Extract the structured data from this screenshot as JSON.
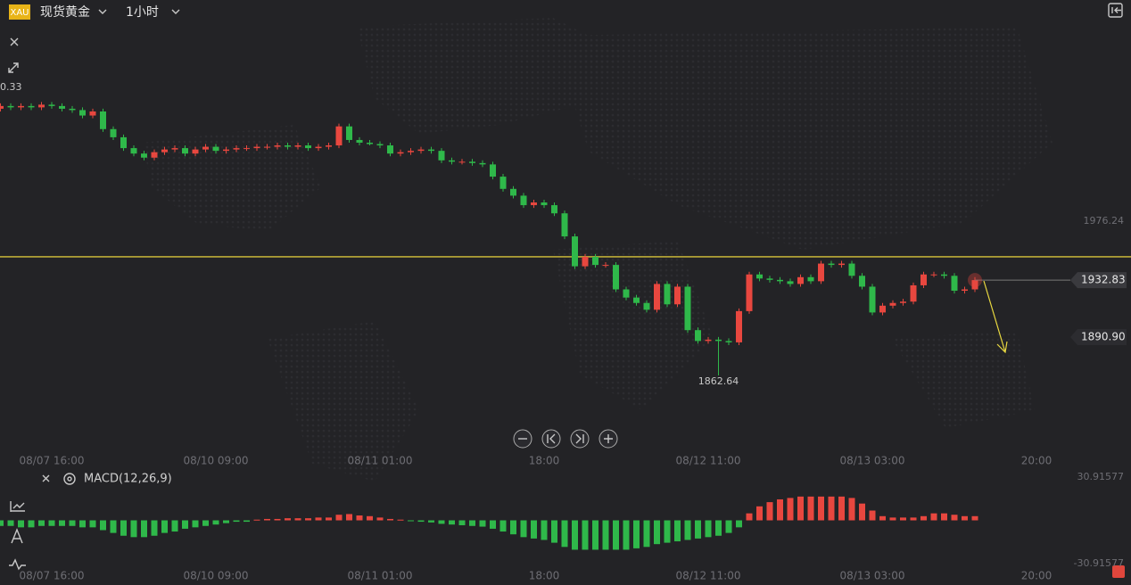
{
  "header": {
    "symbol_badge": "XAU",
    "instrument": "现货黄金",
    "interval": "1小时"
  },
  "chart_data": {
    "type": "candlestick",
    "categories": [
      null,
      null,
      null,
      null,
      null,
      "08/07 16:00",
      null,
      null,
      null,
      null,
      null,
      null,
      null,
      null,
      null,
      null,
      null,
      null,
      null,
      null,
      null,
      "08/10 09:00",
      null,
      null,
      null,
      null,
      null,
      null,
      null,
      null,
      null,
      null,
      null,
      null,
      null,
      null,
      null,
      "08/11 01:00",
      null,
      null,
      null,
      null,
      null,
      null,
      null,
      null,
      null,
      null,
      null,
      null,
      null,
      null,
      null,
      "18:00",
      null,
      null,
      null,
      null,
      null,
      null,
      null,
      null,
      null,
      null,
      null,
      null,
      null,
      null,
      null,
      "08/12 11:00",
      null,
      null,
      null,
      null,
      null,
      null,
      null,
      null,
      null,
      null,
      null,
      null,
      null,
      null,
      null,
      "08/13 03:00",
      null,
      null,
      null,
      null,
      null,
      null,
      null,
      null,
      null,
      null,
      null,
      null,
      null,
      null,
      null,
      "20:00"
    ],
    "open": [
      2059,
      2061,
      2060,
      2061,
      2060,
      2062,
      2061,
      2059,
      2058,
      2054,
      2057,
      2044,
      2038,
      2030,
      2026,
      2023,
      2027,
      2029,
      2030,
      2026,
      2029,
      2031,
      2028,
      2029,
      2030,
      2030,
      2031,
      2031,
      2032,
      2031,
      2032,
      2030,
      2031,
      2032,
      2046,
      2036,
      2034,
      2033,
      2032,
      2026,
      2027,
      2028,
      2029,
      2028,
      2021,
      2020,
      2020,
      2019,
      2018,
      2009,
      2000,
      1995,
      1988,
      1990,
      1988,
      1982,
      1965,
      1943,
      1950,
      1944,
      1944,
      1926,
      1920,
      1916,
      1911,
      1930,
      1915,
      1928,
      1896,
      1888,
      1889,
      1888,
      1887,
      1910,
      1937,
      1934,
      1933,
      1932,
      1930,
      1935,
      1932,
      1945,
      1944,
      1945,
      1936,
      1928,
      1909,
      1914,
      1916,
      1917,
      1929,
      1937,
      1937,
      1936,
      1925,
      1926,
      null,
      null,
      null,
      null,
      null,
      null
    ],
    "high": [
      2063,
      2063,
      2063,
      2063,
      2064,
      2064,
      2063,
      2061,
      2060,
      2059,
      2059,
      2046,
      2040,
      2032,
      2028,
      2029,
      2031,
      2032,
      2032,
      2031,
      2033,
      2033,
      2031,
      2032,
      2032,
      2033,
      2033,
      2034,
      2034,
      2034,
      2034,
      2033,
      2034,
      2048,
      2048,
      2038,
      2036,
      2035,
      2034,
      2029,
      2030,
      2031,
      2031,
      2030,
      2023,
      2022,
      2022,
      2021,
      2020,
      2011,
      2002,
      1997,
      1992,
      1992,
      1990,
      1984,
      1967,
      1952,
      1952,
      1946,
      1946,
      1928,
      1922,
      1918,
      1932,
      1932,
      1930,
      1930,
      1898,
      1891,
      1891,
      1890,
      1912,
      1939,
      1939,
      1936,
      1935,
      1934,
      1937,
      1937,
      1947,
      1947,
      1947,
      1947,
      1938,
      1930,
      1916,
      1918,
      1919,
      1931,
      1939,
      1939,
      1939,
      1938,
      1928,
      1935,
      null,
      null,
      null,
      null,
      null,
      null
    ],
    "low": [
      2057,
      2058,
      2058,
      2058,
      2058,
      2059,
      2057,
      2056,
      2052,
      2052,
      2042,
      2036,
      2028,
      2024,
      2021,
      2021,
      2025,
      2027,
      2024,
      2024,
      2027,
      2026,
      2026,
      2027,
      2028,
      2028,
      2029,
      2029,
      2029,
      2029,
      2028,
      2028,
      2029,
      2030,
      2034,
      2032,
      2032,
      2030,
      2024,
      2024,
      2025,
      2026,
      2026,
      2019,
      2018,
      2018,
      2017,
      2016,
      2007,
      1998,
      1993,
      1986,
      1986,
      1986,
      1980,
      1963,
      1941,
      1941,
      1942,
      1942,
      1924,
      1918,
      1914,
      1909,
      1909,
      1913,
      1913,
      1894,
      1886,
      1886,
      1862.64,
      1885,
      1885,
      1908,
      1932,
      1931,
      1930,
      1928,
      1928,
      1930,
      1930,
      1942,
      1942,
      1934,
      1926,
      1907,
      1907,
      1912,
      1914,
      1915,
      1927,
      1935,
      1934,
      1923,
      1923,
      1924,
      null,
      null,
      null,
      null,
      null,
      null
    ],
    "close": [
      2061,
      2060,
      2061,
      2060,
      2062,
      2061,
      2059,
      2058,
      2054,
      2057,
      2044,
      2038,
      2030,
      2026,
      2023,
      2027,
      2029,
      2030,
      2026,
      2029,
      2031,
      2028,
      2029,
      2030,
      2030,
      2031,
      2031,
      2032,
      2031,
      2032,
      2030,
      2031,
      2032,
      2046,
      2036,
      2034,
      2033,
      2032,
      2026,
      2027,
      2028,
      2029,
      2028,
      2021,
      2020,
      2020,
      2019,
      2018,
      2009,
      2000,
      1995,
      1988,
      1990,
      1988,
      1982,
      1965,
      1943,
      1950,
      1944,
      1944,
      1926,
      1920,
      1916,
      1911,
      1930,
      1915,
      1928,
      1896,
      1888,
      1889,
      1888,
      1887,
      1910,
      1937,
      1934,
      1933,
      1932,
      1930,
      1935,
      1932,
      1945,
      1944,
      1945,
      1936,
      1928,
      1909,
      1914,
      1916,
      1917,
      1929,
      1937,
      1937,
      1936,
      1925,
      1926,
      1932.83,
      null,
      null,
      null,
      null,
      null,
      null
    ],
    "up_color": "#e8473f",
    "down_color": "#2fb84a",
    "ylim": [
      1807.5,
      2133.8
    ],
    "yticks": [
      1976.24
    ],
    "cursor_price": {
      "value": 1890.9,
      "label": "1890.90"
    },
    "high_annotation": "0.33",
    "hline": 1950,
    "hline_color": "#d8c53a",
    "macd": {
      "title": "MACD(12,26,9)",
      "type": "bar",
      "values": [
        -4,
        -4,
        -5,
        -5,
        -4,
        -4,
        -4,
        -4,
        -5,
        -5,
        -7,
        -9,
        -11,
        -12,
        -12,
        -11,
        -9,
        -8,
        -6,
        -5,
        -4,
        -3,
        -2,
        -1,
        -1,
        0.5,
        1,
        1,
        1.5,
        1.5,
        1.5,
        2,
        2,
        4,
        4.5,
        3.5,
        3,
        2,
        1,
        0.5,
        -0.5,
        -1,
        -1.5,
        -2.5,
        -3,
        -3.5,
        -4,
        -4.5,
        -6,
        -8,
        -10,
        -12,
        -13,
        -14,
        -16,
        -19,
        -21,
        -21,
        -21,
        -21,
        -21,
        -21,
        -20,
        -19,
        -17,
        -16,
        -15,
        -14,
        -13,
        -12,
        -11,
        -9,
        -5,
        5,
        10,
        13,
        15,
        16,
        17,
        17,
        17,
        17,
        17,
        16,
        12,
        7,
        3,
        2,
        2,
        2,
        3,
        5,
        5,
        4,
        3,
        3,
        null,
        null,
        null,
        null,
        null,
        null
      ],
      "ylim": [
        -30.91577,
        30.91577
      ],
      "yticks": [
        30.91577,
        -30.91577
      ]
    }
  }
}
